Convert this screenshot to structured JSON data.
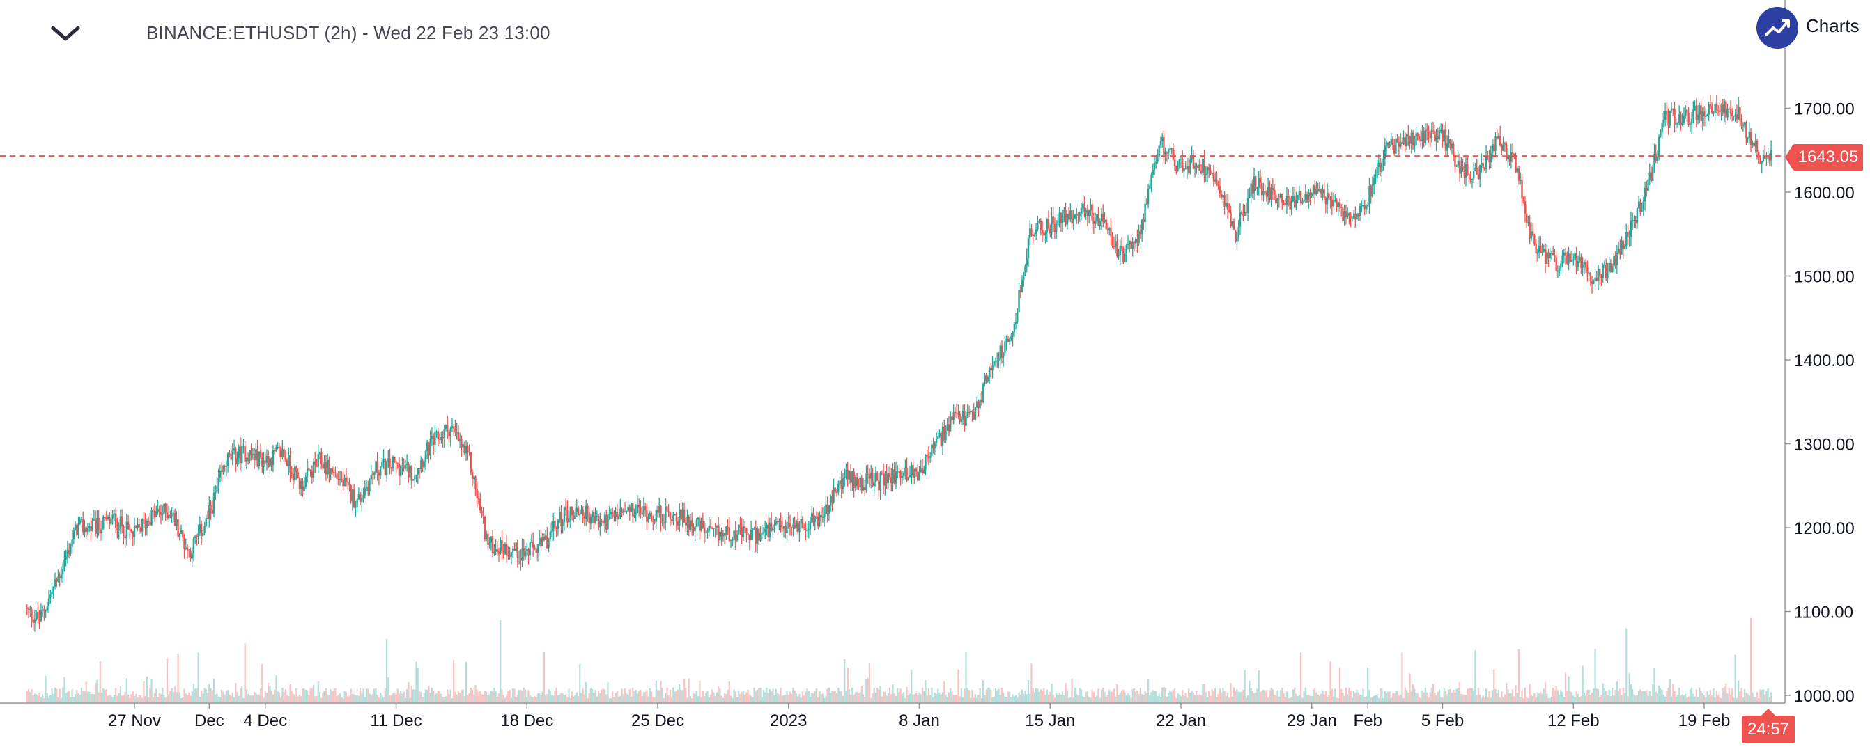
{
  "header": {
    "symbol_title": "BINANCE:ETHUSDT (2h) - Wed 22 Feb 23 13:00",
    "logo_text": "Charts"
  },
  "colors": {
    "up": "#26a69a",
    "down": "#ef5350",
    "volume_up": "#b2dfdb",
    "volume_down": "#f8c3c2",
    "axis": "#9598a1",
    "logo": "#2c3e9f"
  },
  "chart_data": {
    "type": "candlestick",
    "symbol": "BINANCE:ETHUSDT",
    "interval": "2h",
    "last_price": "1643.05",
    "countdown": "24:57",
    "ylim": [
      990,
      1760
    ],
    "y_ticks": [
      "1700.00",
      "1600.00",
      "1500.00",
      "1400.00",
      "1300.00",
      "1200.00",
      "1100.00",
      "1000.00"
    ],
    "x_ticks": [
      "27 Nov",
      "Dec",
      "4 Dec",
      "11 Dec",
      "18 Dec",
      "25 Dec",
      "2023",
      "8 Jan",
      "15 Jan",
      "22 Jan",
      "29 Jan",
      "Feb",
      "5 Feb",
      "12 Feb",
      "19 Feb"
    ],
    "x_tick_dates": [
      "2022-11-27",
      "2022-12-01",
      "2022-12-04",
      "2022-12-11",
      "2022-12-18",
      "2022-12-25",
      "2023-01-01",
      "2023-01-08",
      "2023-01-15",
      "2023-01-22",
      "2023-01-29",
      "2023-02-01",
      "2023-02-05",
      "2023-02-12",
      "2023-02-19"
    ],
    "date_range": [
      "2022-11-21",
      "2023-02-22"
    ],
    "price_path": [
      [
        "2022-11-21",
        1105
      ],
      [
        "2022-11-22",
        1090
      ],
      [
        "2022-11-23",
        1140
      ],
      [
        "2022-11-24",
        1200
      ],
      [
        "2022-11-25",
        1200
      ],
      [
        "2022-11-26",
        1210
      ],
      [
        "2022-11-27",
        1190
      ],
      [
        "2022-11-28",
        1215
      ],
      [
        "2022-11-29",
        1220
      ],
      [
        "2022-11-30",
        1170
      ],
      [
        "2022-12-01",
        1210
      ],
      [
        "2022-12-02",
        1280
      ],
      [
        "2022-12-03",
        1290
      ],
      [
        "2022-12-04",
        1280
      ],
      [
        "2022-12-05",
        1290
      ],
      [
        "2022-12-06",
        1250
      ],
      [
        "2022-12-07",
        1280
      ],
      [
        "2022-12-08",
        1260
      ],
      [
        "2022-12-09",
        1230
      ],
      [
        "2022-12-10",
        1270
      ],
      [
        "2022-12-11",
        1275
      ],
      [
        "2022-12-12",
        1265
      ],
      [
        "2022-12-13",
        1300
      ],
      [
        "2022-12-14",
        1320
      ],
      [
        "2022-12-15",
        1280
      ],
      [
        "2022-12-16",
        1180
      ],
      [
        "2022-12-17",
        1175
      ],
      [
        "2022-12-18",
        1170
      ],
      [
        "2022-12-19",
        1180
      ],
      [
        "2022-12-20",
        1215
      ],
      [
        "2022-12-21",
        1220
      ],
      [
        "2022-12-22",
        1205
      ],
      [
        "2022-12-23",
        1215
      ],
      [
        "2022-12-24",
        1220
      ],
      [
        "2022-12-25",
        1215
      ],
      [
        "2022-12-26",
        1215
      ],
      [
        "2022-12-27",
        1205
      ],
      [
        "2022-12-28",
        1190
      ],
      [
        "2022-12-29",
        1195
      ],
      [
        "2022-12-30",
        1190
      ],
      [
        "2022-12-31",
        1195
      ],
      [
        "2023-01-01",
        1200
      ],
      [
        "2023-01-02",
        1205
      ],
      [
        "2023-01-03",
        1215
      ],
      [
        "2023-01-04",
        1260
      ],
      [
        "2023-01-05",
        1255
      ],
      [
        "2023-01-06",
        1255
      ],
      [
        "2023-01-07",
        1265
      ],
      [
        "2023-01-08",
        1265
      ],
      [
        "2023-01-09",
        1300
      ],
      [
        "2023-01-10",
        1330
      ],
      [
        "2023-01-11",
        1330
      ],
      [
        "2023-01-12",
        1400
      ],
      [
        "2023-01-13",
        1420
      ],
      [
        "2023-01-14",
        1550
      ],
      [
        "2023-01-15",
        1560
      ],
      [
        "2023-01-16",
        1570
      ],
      [
        "2023-01-17",
        1580
      ],
      [
        "2023-01-18",
        1560
      ],
      [
        "2023-01-19",
        1520
      ],
      [
        "2023-01-20",
        1560
      ],
      [
        "2023-01-21",
        1660
      ],
      [
        "2023-01-22",
        1630
      ],
      [
        "2023-01-23",
        1635
      ],
      [
        "2023-01-24",
        1620
      ],
      [
        "2023-01-25",
        1550
      ],
      [
        "2023-01-26",
        1610
      ],
      [
        "2023-01-27",
        1600
      ],
      [
        "2023-01-28",
        1585
      ],
      [
        "2023-01-29",
        1600
      ],
      [
        "2023-01-30",
        1590
      ],
      [
        "2023-01-31",
        1570
      ],
      [
        "2023-02-01",
        1590
      ],
      [
        "2023-02-02",
        1650
      ],
      [
        "2023-02-03",
        1660
      ],
      [
        "2023-02-04",
        1665
      ],
      [
        "2023-02-05",
        1670
      ],
      [
        "2023-02-06",
        1630
      ],
      [
        "2023-02-07",
        1620
      ],
      [
        "2023-02-08",
        1660
      ],
      [
        "2023-02-09",
        1630
      ],
      [
        "2023-02-10",
        1530
      ],
      [
        "2023-02-11",
        1515
      ],
      [
        "2023-02-12",
        1520
      ],
      [
        "2023-02-13",
        1500
      ],
      [
        "2023-02-14",
        1510
      ],
      [
        "2023-02-15",
        1550
      ],
      [
        "2023-02-16",
        1600
      ],
      [
        "2023-02-17",
        1690
      ],
      [
        "2023-02-18",
        1690
      ],
      [
        "2023-02-19",
        1695
      ],
      [
        "2023-02-20",
        1700
      ],
      [
        "2023-02-21",
        1690
      ],
      [
        "2023-02-22",
        1643
      ]
    ],
    "volume_scale": "relative 0-1"
  }
}
